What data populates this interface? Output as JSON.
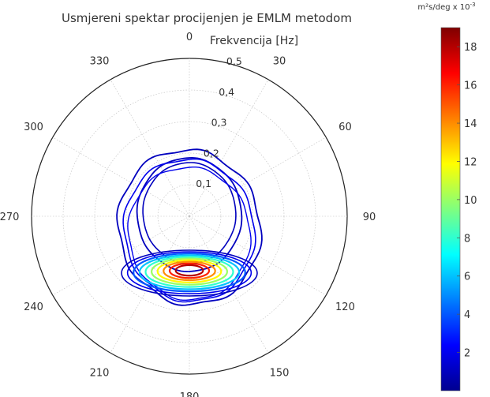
{
  "chart_data": {
    "type": "contour",
    "title": "Usmjereni spektar procijenjen je EMLM metodom",
    "radial_axis_label": "Frekvencija [Hz]",
    "angle_ticks": [
      "0",
      "30",
      "60",
      "90",
      "120",
      "150",
      "180",
      "210",
      "240",
      "270",
      "300",
      "330"
    ],
    "radial_ticks": [
      "0,1",
      "0,2",
      "0,3",
      "0,4",
      "0,5"
    ],
    "radial_range": [
      0,
      0.5
    ],
    "grid": true,
    "colorbar": {
      "unit_main": "m²s/deg x 10",
      "unit_exp": "-3",
      "ticks": [
        "2",
        "4",
        "6",
        "8",
        "10",
        "12",
        "14",
        "16",
        "18"
      ],
      "range": [
        0,
        19
      ],
      "colors": [
        "#00008f",
        "#0000ff",
        "#007fff",
        "#00ffff",
        "#7fff7f",
        "#ffff00",
        "#ff7f00",
        "#ff0000",
        "#7f0000"
      ]
    },
    "peak": {
      "direction_deg": 180,
      "frequency_hz": 0.17,
      "value": 18
    },
    "contour_levels": [
      1,
      2,
      4,
      6,
      8,
      10,
      12,
      14,
      16,
      18
    ]
  }
}
